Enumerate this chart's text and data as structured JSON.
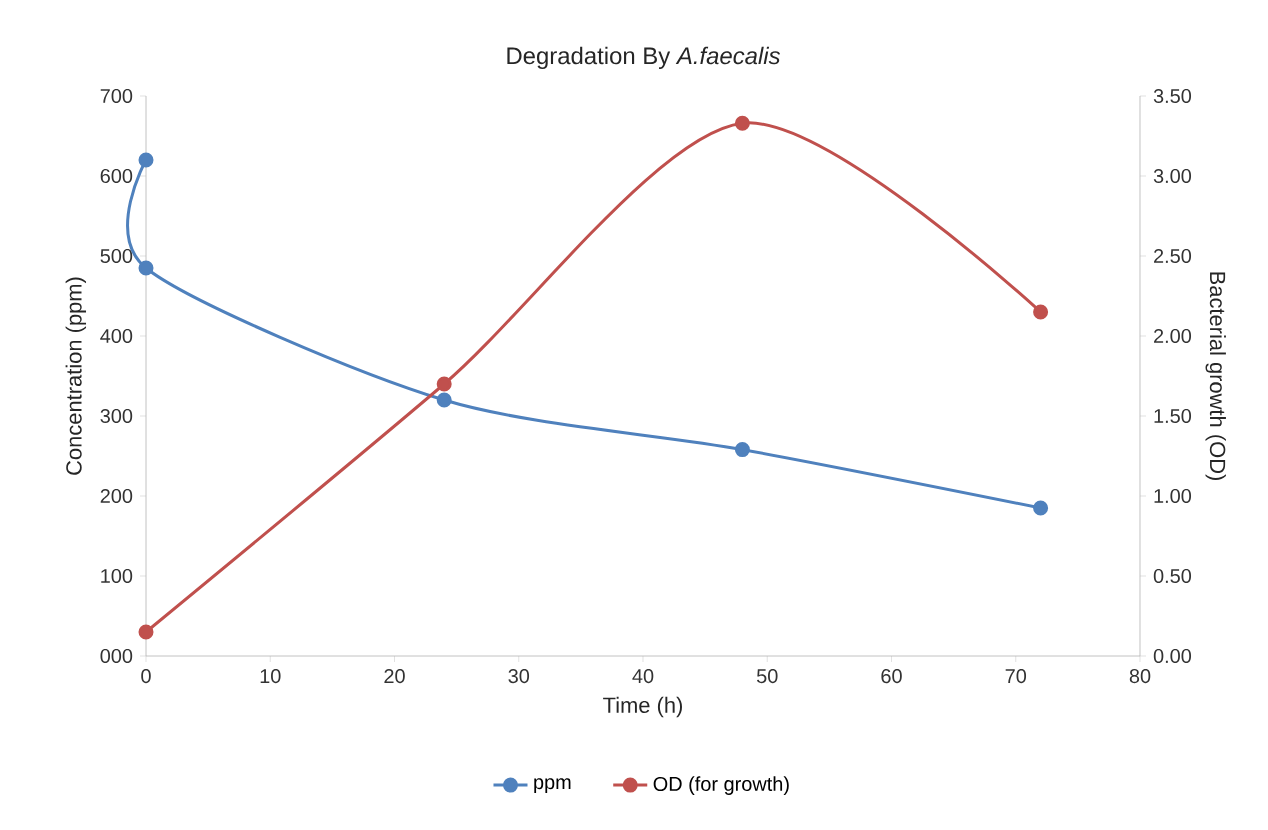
{
  "chart_data": {
    "type": "line",
    "title": "Degradation By *A.faecalis*",
    "xlabel": "Time (h)",
    "ylabel": "Concentration (ppm)",
    "y2label": "Bacterial growth (OD)",
    "series": [
      {
        "name": "ppm",
        "color": "#4f81bd",
        "x": [
          0,
          0,
          24,
          48,
          72
        ],
        "values": [
          620,
          485,
          320,
          258,
          185
        ]
      },
      {
        "name": "OD (for growth)",
        "color": "#c0504d",
        "axis": "y2",
        "x": [
          0,
          24,
          48,
          72
        ],
        "values": [
          0.15,
          1.7,
          3.33,
          2.15
        ]
      }
    ],
    "xlim": [
      0,
      80
    ],
    "xticks": [
      0,
      10,
      20,
      30,
      40,
      50,
      60,
      70,
      80
    ],
    "ylim": [
      0,
      700
    ],
    "yticks": [
      {
        "value": 0,
        "label": "000"
      },
      100,
      200,
      300,
      400,
      500,
      600,
      700
    ],
    "y2lim": [
      0,
      3.5
    ],
    "y2ticks": [
      {
        "value": 0,
        "label": "0.00"
      },
      {
        "value": 0.5,
        "label": "0.50"
      },
      {
        "value": 1,
        "label": "1.00"
      },
      {
        "value": 1.5,
        "label": "1.50"
      },
      {
        "value": 2,
        "label": "2.00"
      },
      {
        "value": 2.5,
        "label": "2.50"
      },
      {
        "value": 3,
        "label": "3.00"
      },
      {
        "value": 3.5,
        "label": "3.50"
      }
    ],
    "legend": "bottom",
    "marker": "circle",
    "line_style": "solid",
    "grid": false
  }
}
